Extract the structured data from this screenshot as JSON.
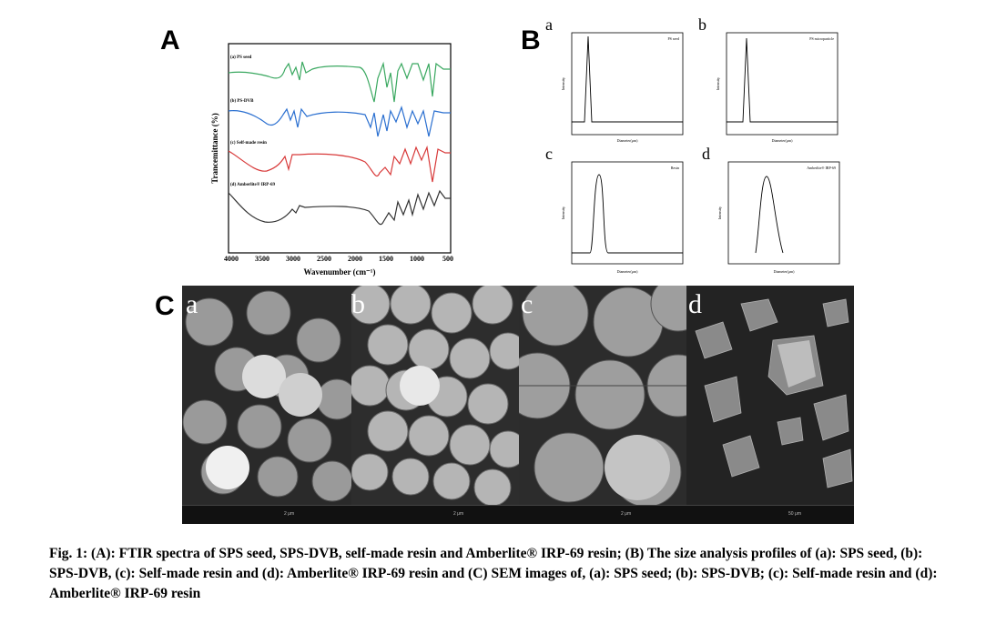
{
  "panels": {
    "A": "A",
    "B": "B",
    "C": "C"
  },
  "ftir": {
    "ylabel": "Trancemittance (%)",
    "xlabel": "Wavenumber (cm⁻¹)",
    "xticks": [
      "4000",
      "3500",
      "3000",
      "2500",
      "2000",
      "1500",
      "1000",
      "500"
    ],
    "series": [
      {
        "name": "(a) PS seed",
        "color": "#3aa860"
      },
      {
        "name": "(b) PS-DVB",
        "color": "#2a6fd0"
      },
      {
        "name": "(c) Self-made resin",
        "color": "#d83a3a"
      },
      {
        "name": "(d) Amberlite® IRP-69",
        "color": "#333333"
      }
    ]
  },
  "size_plots": [
    {
      "letter": "a",
      "legend": "PS seed",
      "xlabel": "Diameter(μm)",
      "ylabel": "Intensity"
    },
    {
      "letter": "b",
      "legend": "PS microparticle",
      "xlabel": "Diameter(μm)",
      "ylabel": "Intensity"
    },
    {
      "letter": "c",
      "legend": "Resin",
      "xlabel": "Diameter(μm)",
      "ylabel": "Intensity"
    },
    {
      "letter": "d",
      "legend": "Amberlite® IRP-69",
      "xlabel": "Diameter(μm)",
      "ylabel": "Intensity"
    }
  ],
  "sem": [
    {
      "letter": "a",
      "scale": "2 μm"
    },
    {
      "letter": "b",
      "scale": "2 μm"
    },
    {
      "letter": "c",
      "scale": "2 μm"
    },
    {
      "letter": "d",
      "scale": "50 μm"
    }
  ],
  "caption": {
    "text": "Fig. 1: (A): FTIR spectra of SPS seed, SPS-DVB, self-made resin and Amberlite® IRP-69 resin; (B) The size analysis profiles of (a): SPS seed, (b): SPS-DVB, (c): Self-made resin and (d): Amberlite® IRP-69 resin and (C) SEM images of, (a): SPS seed; (b): SPS-DVB; (c): Self-made resin and (d): Amberlite® IRP-69 resin"
  }
}
